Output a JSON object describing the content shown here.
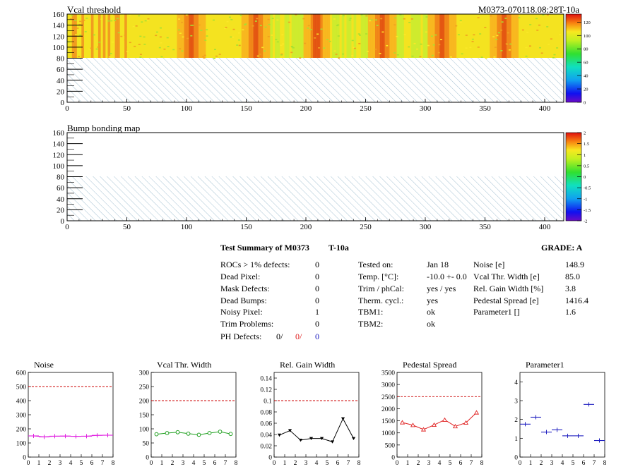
{
  "header": {
    "map1_title": "Vcal threshold",
    "module_label": "M0373-070118.08:28T-10a",
    "map2_title": "Bump bonding map"
  },
  "colors": {
    "hatch": "#8fb3c8",
    "map_bg": "#f4e320",
    "noise": "#e020e0",
    "vcal": "#20a020",
    "gain": "#000000",
    "pedestal": "#e02020",
    "param1": "#2020c0",
    "limit_line": "#cc0000"
  },
  "map1": {
    "x_ticks": [
      "0",
      "50",
      "100",
      "150",
      "200",
      "250",
      "300",
      "350",
      "400"
    ],
    "y_ticks": [
      "0",
      "20",
      "40",
      "60",
      "80",
      "100",
      "120",
      "140",
      "160"
    ],
    "palette_ticks": [
      "0",
      "20",
      "40",
      "60",
      "80",
      "100",
      "120"
    ],
    "filled_rows": "80-160",
    "hot_columns": [
      103,
      157,
      208,
      263,
      313,
      365
    ],
    "cool_bands": [
      [
        160,
        205
      ],
      [
        210,
        260
      ],
      [
        265,
        310
      ]
    ]
  },
  "map2": {
    "x_ticks": [
      "0",
      "50",
      "100",
      "150",
      "200",
      "250",
      "300",
      "350",
      "400"
    ],
    "y_ticks": [
      "0",
      "20",
      "40",
      "60",
      "80",
      "100",
      "120",
      "140",
      "160"
    ],
    "palette_ticks": [
      "-2",
      "-1.5",
      "-1",
      "-0.5",
      "0",
      "0.5",
      "1",
      "1.5",
      "2"
    ]
  },
  "summary": {
    "title": "Test Summary of M0373",
    "temp_label": "T-10a",
    "grade": "GRADE:  A",
    "left": [
      {
        "label": "ROCs > 1% defects:",
        "value": "0"
      },
      {
        "label": "Dead Pixel:",
        "value": "0"
      },
      {
        "label": "Mask Defects:",
        "value": "0"
      },
      {
        "label": "Dead Bumps:",
        "value": "0"
      },
      {
        "label": "Noisy Pixel:",
        "value": "1"
      },
      {
        "label": "Trim Problems:",
        "value": "0"
      }
    ],
    "ph_defects_label": "PH Defects:",
    "ph_defects": [
      "0/",
      "0/",
      "0"
    ],
    "middle": [
      {
        "label": "Tested on:",
        "value": "Jan 18"
      },
      {
        "label": "Temp. [°C]:",
        "value": "-10.0 +- 0.0"
      },
      {
        "label": "Trim / phCal:",
        "value": "yes / yes"
      },
      {
        "label": "Therm. cycl.:",
        "value": "yes"
      },
      {
        "label": "TBM1:",
        "value": "ok"
      },
      {
        "label": "TBM2:",
        "value": "ok"
      }
    ],
    "right": [
      {
        "label": "Noise [e]",
        "value": "148.9"
      },
      {
        "label": "Vcal Thr. Width [e]",
        "value": "85.0"
      },
      {
        "label": "Rel. Gain Width [%]",
        "value": "3.8"
      },
      {
        "label": "Pedestal Spread [e]",
        "value": "1416.4"
      },
      {
        "label": "Parameter1 []",
        "value": "1.6"
      }
    ]
  },
  "chart_data": [
    {
      "type": "line",
      "title": "Noise",
      "x": [
        0.5,
        1.5,
        2.5,
        3.5,
        4.5,
        5.5,
        6.5,
        7.5
      ],
      "values": [
        150,
        143,
        148,
        149,
        147,
        148,
        154,
        155
      ],
      "ylim": [
        0,
        600
      ],
      "xlim": [
        0,
        8
      ],
      "yticks": [
        "0",
        "100",
        "200",
        "300",
        "400",
        "500",
        "600"
      ],
      "xticks": [
        "0",
        "1",
        "2",
        "3",
        "4",
        "5",
        "6",
        "7",
        "8"
      ],
      "limit": 500,
      "marker": "hbar"
    },
    {
      "type": "line",
      "title": "Vcal Thr. Width",
      "x": [
        0.5,
        1.5,
        2.5,
        3.5,
        4.5,
        5.5,
        6.5,
        7.5
      ],
      "values": [
        81,
        85,
        88,
        83,
        79,
        85,
        90,
        82
      ],
      "ylim": [
        0,
        300
      ],
      "xlim": [
        0,
        8
      ],
      "yticks": [
        "0",
        "50",
        "100",
        "150",
        "200",
        "250",
        "300"
      ],
      "xticks": [
        "0",
        "1",
        "2",
        "3",
        "4",
        "5",
        "6",
        "7",
        "8"
      ],
      "limit": 200,
      "marker": "circle"
    },
    {
      "type": "line",
      "title": "Rel. Gain Width",
      "x": [
        0.5,
        1.5,
        2.5,
        3.5,
        4.5,
        5.5,
        6.5,
        7.5
      ],
      "values": [
        0.039,
        0.047,
        0.03,
        0.033,
        0.033,
        0.027,
        0.068,
        0.033
      ],
      "ylim": [
        0,
        0.15
      ],
      "xlim": [
        0,
        8
      ],
      "yticks": [
        "0",
        "0.02",
        "0.04",
        "0.06",
        "0.08",
        "0.1",
        "0.12",
        "0.14"
      ],
      "ytick_values": [
        0,
        0.02,
        0.04,
        0.06,
        0.08,
        0.1,
        0.12,
        0.14
      ],
      "xticks": [
        "0",
        "1",
        "2",
        "3",
        "4",
        "5",
        "6",
        "7",
        "8"
      ],
      "limit": 0.1,
      "marker": "triangle-down"
    },
    {
      "type": "line",
      "title": "Pedestal Spread",
      "x": [
        0.5,
        1.5,
        2.5,
        3.5,
        4.5,
        5.5,
        6.5,
        7.5
      ],
      "values": [
        1430,
        1320,
        1140,
        1330,
        1540,
        1270,
        1420,
        1840
      ],
      "ylim": [
        0,
        3500
      ],
      "xlim": [
        0,
        8
      ],
      "yticks": [
        "0",
        "500",
        "1000",
        "1500",
        "2000",
        "2500",
        "3000",
        "3500"
      ],
      "xticks": [
        "0",
        "1",
        "2",
        "3",
        "4",
        "5",
        "6",
        "7",
        "8"
      ],
      "limit": 2500,
      "marker": "triangle-up"
    },
    {
      "type": "scatter",
      "title": "Parameter1",
      "x": [
        0.5,
        1.5,
        2.5,
        3.5,
        4.5,
        5.5,
        6.5,
        7.5
      ],
      "values": [
        1.75,
        2.12,
        1.33,
        1.45,
        1.13,
        1.13,
        2.8,
        0.88
      ],
      "ylim": [
        0,
        4.5
      ],
      "xlim": [
        0,
        8
      ],
      "yticks": [
        "0",
        "1",
        "2",
        "3",
        "4"
      ],
      "ytick_values": [
        0,
        1,
        2,
        3,
        4
      ],
      "xticks": [
        "0",
        "1",
        "2",
        "3",
        "4",
        "5",
        "6",
        "7",
        "8"
      ],
      "marker": "hbar"
    }
  ]
}
